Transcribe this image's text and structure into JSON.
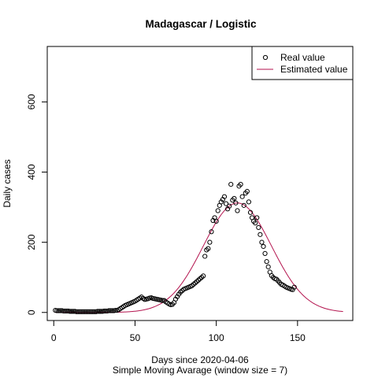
{
  "chart_data": {
    "type": "scatter",
    "title": "Madagascar / Logistic",
    "xlabel": "Days since 2020-04-06",
    "subtitle": "Simple Moving Avarage (window size = 7)",
    "ylabel": "Daily cases",
    "xlim": [
      -4,
      184
    ],
    "ylim": [
      -23,
      758
    ],
    "x_ticks": [
      0,
      50,
      100,
      150
    ],
    "y_ticks": [
      0,
      200,
      400,
      600
    ],
    "grid": false,
    "legend_position": "top-right",
    "series": [
      {
        "name": "Real value",
        "style": "points",
        "color": "#000000",
        "x": [
          1,
          2,
          3,
          4,
          5,
          6,
          7,
          8,
          9,
          10,
          11,
          12,
          13,
          14,
          15,
          16,
          17,
          18,
          19,
          20,
          21,
          22,
          23,
          24,
          25,
          26,
          27,
          28,
          29,
          30,
          31,
          32,
          33,
          34,
          35,
          36,
          37,
          38,
          39,
          40,
          41,
          42,
          43,
          44,
          45,
          46,
          47,
          48,
          49,
          50,
          51,
          52,
          53,
          54,
          55,
          56,
          57,
          58,
          59,
          60,
          61,
          62,
          63,
          64,
          65,
          66,
          67,
          68,
          69,
          70,
          71,
          72,
          73,
          74,
          75,
          76,
          77,
          78,
          79,
          80,
          81,
          82,
          83,
          84,
          85,
          86,
          87,
          88,
          89,
          90,
          91,
          92,
          93,
          94,
          95,
          96,
          97,
          98,
          99,
          100,
          101,
          102,
          103,
          104,
          105,
          106,
          107,
          108,
          109,
          110,
          111,
          112,
          113,
          114,
          115,
          116,
          117,
          118,
          119,
          120,
          121,
          122,
          123,
          124,
          125,
          126,
          127,
          128,
          129,
          130,
          131,
          132,
          133,
          134,
          135,
          136,
          137,
          138,
          139,
          140,
          141,
          142,
          143,
          144,
          145,
          146,
          147,
          148
        ],
        "y": [
          6,
          5,
          5,
          5,
          5,
          4,
          4,
          4,
          4,
          3,
          3,
          3,
          3,
          2,
          2,
          2,
          2,
          2,
          2,
          2,
          2,
          2,
          2,
          2,
          2,
          2,
          3,
          3,
          3,
          3,
          4,
          4,
          4,
          5,
          5,
          5,
          5,
          6,
          6,
          8,
          11,
          14,
          17,
          20,
          22,
          24,
          26,
          28,
          30,
          32,
          35,
          38,
          41,
          44,
          40,
          37,
          38,
          39,
          41,
          42,
          40,
          39,
          38,
          37,
          36,
          35,
          34,
          34,
          30,
          27,
          24,
          22,
          23,
          28,
          38,
          45,
          52,
          58,
          62,
          66,
          68,
          70,
          72,
          74,
          76,
          80,
          84,
          88,
          92,
          96,
          100,
          104,
          160,
          178,
          182,
          200,
          230,
          262,
          270,
          260,
          290,
          305,
          315,
          322,
          330,
          310,
          295,
          303,
          365,
          320,
          325,
          312,
          290,
          360,
          365,
          330,
          305,
          340,
          345,
          315,
          285,
          270,
          260,
          255,
          270,
          242,
          222,
          200,
          188,
          168,
          145,
          130,
          115,
          105,
          100,
          96,
          95,
          90,
          85,
          80,
          78,
          75,
          72,
          70,
          68,
          66,
          65,
          72
        ]
      },
      {
        "name": "Estimated value",
        "style": "line",
        "color": "#b3124d",
        "model": {
          "type": "gaussian",
          "peak": 312,
          "center": 113,
          "sigma": 21,
          "x_start": 1,
          "x_end": 178
        }
      }
    ]
  }
}
